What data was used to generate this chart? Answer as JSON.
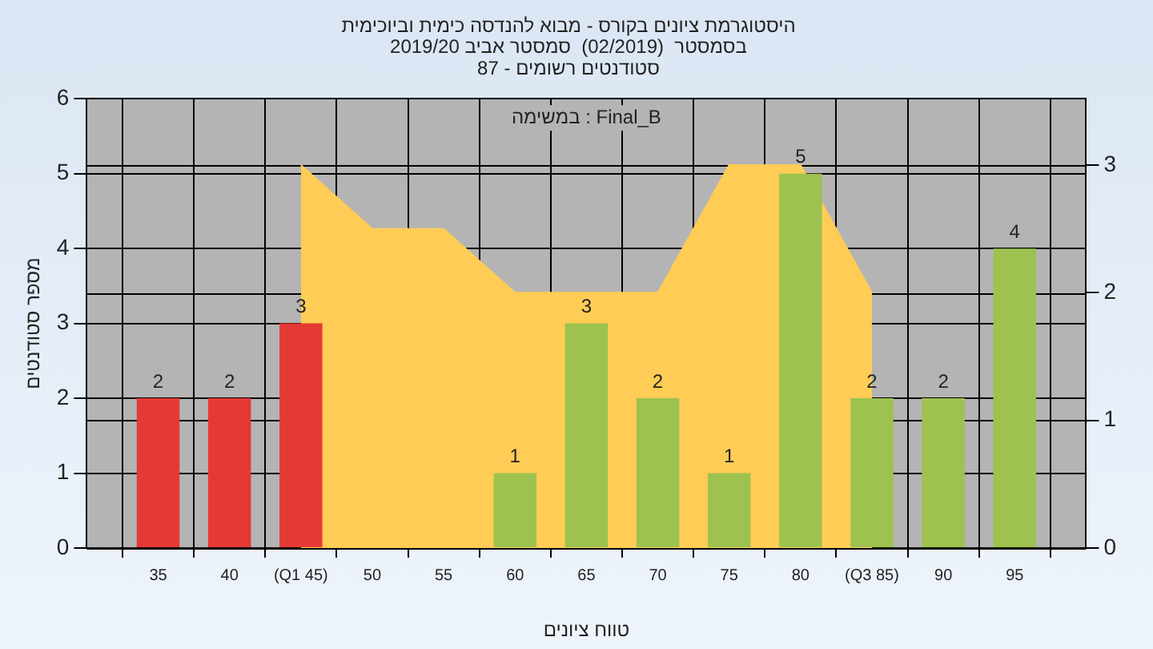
{
  "chart_data": {
    "type": "bar",
    "title": "היסטוגרמת ציונים בקורס - מבוא להנדסה כימית וביוכימית\nבסמסטר  (02/2019)  סמסטר אביב 2019/20\nסטודנטים רשומים - 87",
    "xlabel": "טווח ציונים",
    "ylabel": "מספר סטודנטים",
    "annotations": [
      "במשימה : Final_B"
    ],
    "xlim": [
      30,
      100
    ],
    "xticks": [
      {
        "value": 30,
        "label": null
      },
      35,
      40,
      {
        "value": 45,
        "label": "(Q1 45)"
      },
      50,
      55,
      60,
      65,
      70,
      75,
      80,
      {
        "value": 85,
        "label": "(Q3 85)"
      },
      90,
      95,
      {
        "value": 100,
        "label": null
      }
    ],
    "ylim": [
      0,
      6
    ],
    "yticks": [
      0,
      1,
      2,
      3,
      4,
      5,
      6
    ],
    "y2lim": [
      0,
      3.52
    ],
    "y2ticks": [
      0,
      1,
      2,
      3
    ],
    "grid": true,
    "legend": false,
    "series": [
      {
        "type": "area",
        "axis": "y2",
        "color": "#ffcc55",
        "x": [
          45,
          50,
          55,
          60,
          65,
          70,
          75,
          80,
          85
        ],
        "values": [
          3,
          2.5,
          2.5,
          2,
          2,
          2,
          3,
          3,
          2
        ]
      },
      {
        "x": [
          35,
          40,
          45,
          60,
          65,
          70,
          75,
          80,
          85,
          90,
          95
        ],
        "values": [
          2,
          2,
          3,
          1,
          3,
          2,
          1,
          5,
          2,
          2,
          4
        ],
        "value_labels": [
          "2",
          "2",
          "3",
          "1",
          "3",
          "2",
          "1",
          "5",
          "2",
          "2",
          "4"
        ],
        "colors": [
          "#e53935",
          "#e53935",
          "#e53935",
          "#9dc24f",
          "#9dc24f",
          "#9dc24f",
          "#9dc24f",
          "#9dc24f",
          "#9dc24f",
          "#9dc24f",
          "#9dc24f"
        ]
      }
    ]
  }
}
